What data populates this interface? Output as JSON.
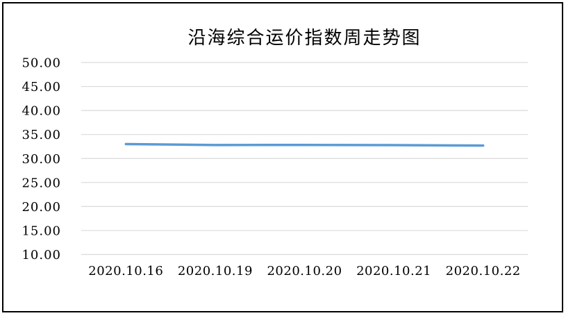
{
  "chart_data": {
    "type": "line",
    "title": "沿海综合运价指数周走势图",
    "categories": [
      "2020.10.16",
      "2020.10.19",
      "2020.10.20",
      "2020.10.21",
      "2020.10.22"
    ],
    "series": [
      {
        "values": [
          33.0,
          32.8,
          32.83,
          32.78,
          32.7
        ]
      }
    ],
    "ylim": [
      10,
      50
    ],
    "ytick_step": 5,
    "yticks": [
      50,
      45,
      40,
      35,
      30,
      25,
      20,
      15,
      10
    ],
    "ytick_labels": [
      "50.00",
      "45.00",
      "40.00",
      "35.00",
      "30.00",
      "25.00",
      "20.00",
      "15.00",
      "10.00"
    ],
    "xlabel": "",
    "ylabel": "",
    "legend": "none",
    "grid": true,
    "line_color": "#5b9bd5",
    "gridline_color": "#d9d9d9",
    "text_color": "#000000",
    "frame_border_color": "#000000",
    "background": "#ffffff"
  }
}
